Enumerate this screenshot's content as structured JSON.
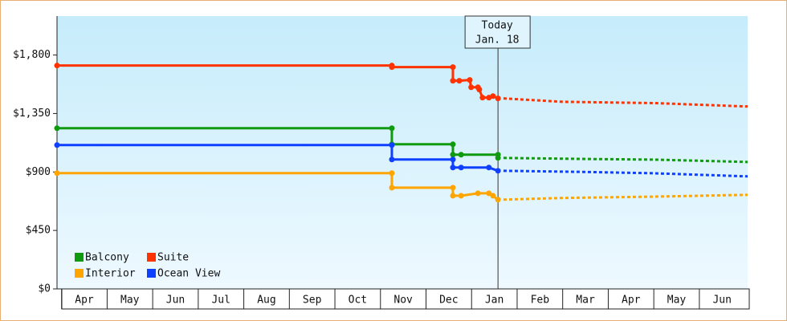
{
  "chart_data": {
    "type": "step-line",
    "categories": [
      "Apr",
      "May",
      "Jun",
      "Jul",
      "Aug",
      "Sep",
      "Oct",
      "Nov",
      "Dec",
      "Jan",
      "Feb",
      "Mar",
      "Apr",
      "May",
      "Jun"
    ],
    "xlim": [
      -0.1,
      15.06
    ],
    "ylim": [
      0,
      2100
    ],
    "yticks": [
      {
        "value": 0,
        "label": "$0"
      },
      {
        "value": 450,
        "label": "$450"
      },
      {
        "value": 900,
        "label": "$900"
      },
      {
        "value": 1350,
        "label": "$1,350"
      },
      {
        "value": 1800,
        "label": "$1,800"
      }
    ],
    "today": {
      "x": 9.58,
      "label": "Today",
      "date": "Jan. 18"
    },
    "legend": "lower left",
    "series": [
      {
        "name": "Balcony",
        "color": "#109a10",
        "x": [
          -0.1,
          7.25,
          7.25,
          8.59,
          8.59,
          8.77,
          9.58,
          9.58
        ],
        "values": [
          1237,
          1237,
          1113,
          1113,
          1033,
          1033,
          1033,
          1008
        ],
        "forecast_x": [
          9.7,
          11.5,
          13,
          15.06
        ],
        "forecast_values": [
          1008,
          1000,
          995,
          977
        ]
      },
      {
        "name": "Suite",
        "color": "#ff3300",
        "x": [
          -0.1,
          7.25,
          7.25,
          8.59,
          8.59,
          8.73,
          8.96,
          8.99,
          9.14,
          9.17,
          9.24,
          9.38,
          9.47,
          9.58
        ],
        "values": [
          1719,
          1719,
          1707,
          1707,
          1602,
          1602,
          1608,
          1552,
          1552,
          1534,
          1472,
          1472,
          1484,
          1466
        ],
        "forecast_x": [
          9.7,
          11,
          13,
          15.06
        ],
        "forecast_values": [
          1466,
          1440,
          1430,
          1404
        ]
      },
      {
        "name": "Interior",
        "color": "#ffa500",
        "x": [
          -0.1,
          7.25,
          7.25,
          8.59,
          8.59,
          8.77,
          9.14,
          9.38,
          9.47,
          9.58
        ],
        "values": [
          891,
          891,
          779,
          779,
          717,
          717,
          736,
          736,
          717,
          687
        ],
        "forecast_x": [
          9.7,
          11,
          13,
          15.06
        ],
        "forecast_values": [
          687,
          700,
          710,
          724
        ]
      },
      {
        "name": "Ocean View",
        "color": "#1040ff",
        "x": [
          -0.1,
          7.25,
          7.25,
          8.59,
          8.59,
          8.77,
          9.38,
          9.58
        ],
        "values": [
          1107,
          1107,
          996,
          996,
          934,
          934,
          934,
          909
        ],
        "forecast_x": [
          9.7,
          11.5,
          13,
          15.06
        ],
        "forecast_values": [
          909,
          900,
          890,
          866
        ]
      }
    ]
  }
}
